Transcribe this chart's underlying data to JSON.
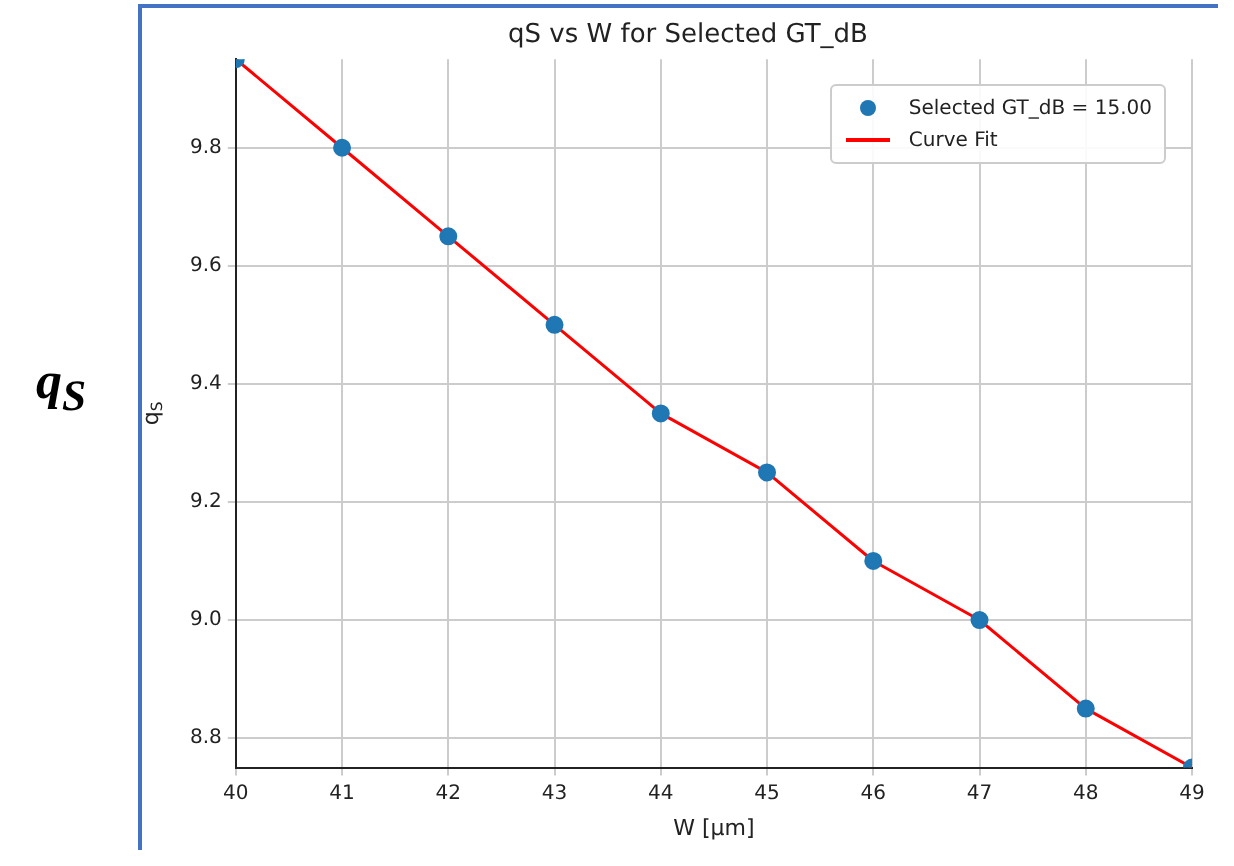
{
  "chart_data": {
    "type": "scatter",
    "title": "qS vs W for Selected GT_dB",
    "xlabel": "W [μm]",
    "ylabel": "q$_{S}$",
    "annotations": [
      "q$_{S}$"
    ],
    "x": [
      40,
      41,
      42,
      43,
      44,
      45,
      46,
      47,
      48,
      49
    ],
    "series": [
      {
        "name": "Selected GT_dB = 15.00",
        "type": "scatter",
        "color": "#1f77b4",
        "marker": "circle",
        "values": [
          9.95,
          9.8,
          9.65,
          9.5,
          9.35,
          9.25,
          9.1,
          9.0,
          8.85,
          8.75
        ]
      },
      {
        "name": "Curve Fit",
        "type": "line",
        "color": "#ff0000",
        "marker": "none",
        "line_style": "solid",
        "values": [
          9.95,
          9.8,
          9.65,
          9.5,
          9.35,
          9.25,
          9.1,
          9.0,
          8.85,
          8.75
        ]
      }
    ],
    "xlim": [
      40,
      49
    ],
    "xticks": [
      40,
      41,
      42,
      43,
      44,
      45,
      46,
      47,
      48,
      49
    ],
    "ylim": [
      8.75,
      9.95
    ],
    "yticks": [
      8.8,
      {
        "value": 9,
        "label": "9.0"
      },
      9.2,
      9.4,
      9.6,
      9.8
    ],
    "grid": true,
    "legend": "top right"
  }
}
